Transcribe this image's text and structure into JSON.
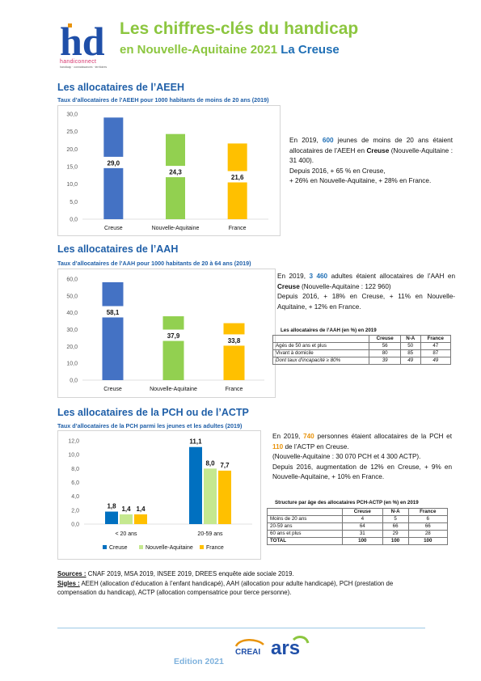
{
  "header": {
    "title_line1": "Les chiffres-clés du handicap",
    "title_line2": "en Nouvelle-Aquitaine 2021",
    "department": "La Creuse",
    "logo_text": "handiconnect",
    "logo_subtext": "handicap · connaissances · territoires",
    "logo_color": "#1f4fa8"
  },
  "aeeh": {
    "title": "Les allocataires de l’AEEH",
    "subtitle": "Taux d’allocataires de l’AEEH pour 1000 habitants de moins de 20 ans (2019)",
    "text": [
      [
        "En 2019, ",
        "600",
        " jeunes de moins de 20 ans étaient allocataires de l’AEEH en ",
        "Creuse",
        " (Nouvelle-Aquitaine : 31 400)."
      ],
      [
        "Depuis 2016, + 65 % en Creuse,"
      ],
      [
        "+ 26% en Nouvelle-Aquitaine, + 28% en France."
      ]
    ]
  },
  "aah": {
    "title": "Les allocataires de l’AAH",
    "subtitle": "Taux d’allocataires de l’AAH pour 1000 habitants de 20 à 64 ans (2019)",
    "text": [
      [
        "En 2019, ",
        "3 460",
        " adultes étaient allocataires de l’AAH en ",
        "Creuse",
        " (Nouvelle-Aquitaine : 122 960)"
      ],
      [
        "Depuis 2016, + 18% en Creuse, + 11% en Nouvelle-Aquitaine, + 12% en France."
      ]
    ],
    "table_title": "Les allocataires de l’AAH (en %) en 2019",
    "table_headers": [
      "",
      "Creuse",
      "N-A",
      "France"
    ],
    "table_rows": [
      [
        "Agés de 50 ans et plus",
        "56",
        "50",
        "47"
      ],
      [
        "Vivant à domicile",
        "80",
        "85",
        "87"
      ],
      [
        "Dont taux d’incapacité ≥ 80%",
        "39",
        "49",
        "49"
      ]
    ]
  },
  "pch": {
    "title": "Les allocataires de la PCH ou de l’ACTP",
    "subtitle": "Taux d’allocataires de la PCH parmi les jeunes et les adultes (2019)",
    "text": [
      [
        "En 2019, ",
        "740",
        " personnes étaient allocataires de la PCH et ",
        "110",
        " de l’ACTP en Creuse."
      ],
      [
        "(Nouvelle-Aquitaine : 30 070 PCH et 4 300 ACTP)."
      ],
      [
        "Depuis 2016, augmentation de 12% en Creuse, + 9% en Nouvelle-Aquitaine, + 10% en France."
      ]
    ],
    "table_title": "Structure par âge des allocataires PCH-ACTP (en %) en 2019",
    "table_headers": [
      "",
      "Creuse",
      "N-A",
      "France"
    ],
    "table_rows": [
      [
        "Moins de 20 ans",
        "4",
        "5",
        "6"
      ],
      [
        "20-59 ans",
        "64",
        "66",
        "66"
      ],
      [
        "60 ans et plus",
        "31",
        "29",
        "28"
      ],
      [
        "TOTAL",
        "100",
        "100",
        "100"
      ]
    ]
  },
  "sources": {
    "sources_label": "Sources :",
    "sources_text": " CNAF 2019, MSA 2019, INSEE 2019, DREES enquête aide sociale 2019.",
    "sigles_label": "Sigles :",
    "sigles_text": " AEEH (allocation d’éducation à l’enfant handicapé), AAH (allocation pour adulte handicapé), PCH (prestation de compensation du handicap), ACTP (allocation compensatrice pour tierce personne)."
  },
  "footer": {
    "edition": "Edition 2021",
    "creai_text": "CREAI",
    "ars_text": "ars"
  },
  "colors": {
    "creuse": "#4472c4",
    "creuse_pch": "#0070c0",
    "nouvelle_aquitaine": "#92d050",
    "nouvelle_aquitaine_pch": "#c5e88f",
    "france": "#ffc000",
    "title_green": "#8cc63f",
    "title_blue": "#1f5fa8"
  },
  "chart_data": [
    {
      "type": "bar",
      "categories": [
        "Creuse",
        "Nouvelle-Aquitaine",
        "France"
      ],
      "values": [
        29.0,
        24.3,
        21.6
      ],
      "labels": [
        "29,0",
        "24,3",
        "21,6"
      ],
      "ylim": [
        0,
        30
      ],
      "ticks": [
        "0,0",
        "5,0",
        "10,0",
        "15,0",
        "20,0",
        "25,0",
        "30,0"
      ],
      "grid": false
    },
    {
      "type": "bar",
      "categories": [
        "Creuse",
        "Nouvelle-Aquitaine",
        "France"
      ],
      "values": [
        58.1,
        37.9,
        33.8
      ],
      "labels": [
        "58,1",
        "37,9",
        "33,8"
      ],
      "ylim": [
        0,
        60
      ],
      "ticks": [
        "0,0",
        "10,0",
        "20,0",
        "30,0",
        "40,0",
        "50,0",
        "60,0"
      ],
      "grid": false
    },
    {
      "type": "bar",
      "categories": [
        "< 20 ans",
        "20-59 ans"
      ],
      "series": [
        {
          "name": "Creuse",
          "values": [
            1.8,
            11.1
          ],
          "labels": [
            "1,8",
            "11,1"
          ]
        },
        {
          "name": "Nouvelle-Aquitaine",
          "values": [
            1.4,
            8.0
          ],
          "labels": [
            "1,4",
            "8,0"
          ]
        },
        {
          "name": "France",
          "values": [
            1.4,
            7.7
          ],
          "labels": [
            "1,4",
            "7,7"
          ]
        }
      ],
      "ylim": [
        0,
        12
      ],
      "ticks": [
        "0,0",
        "2,0",
        "4,0",
        "6,0",
        "8,0",
        "10,0",
        "12,0"
      ],
      "legend": "bottom",
      "grid": false
    }
  ]
}
